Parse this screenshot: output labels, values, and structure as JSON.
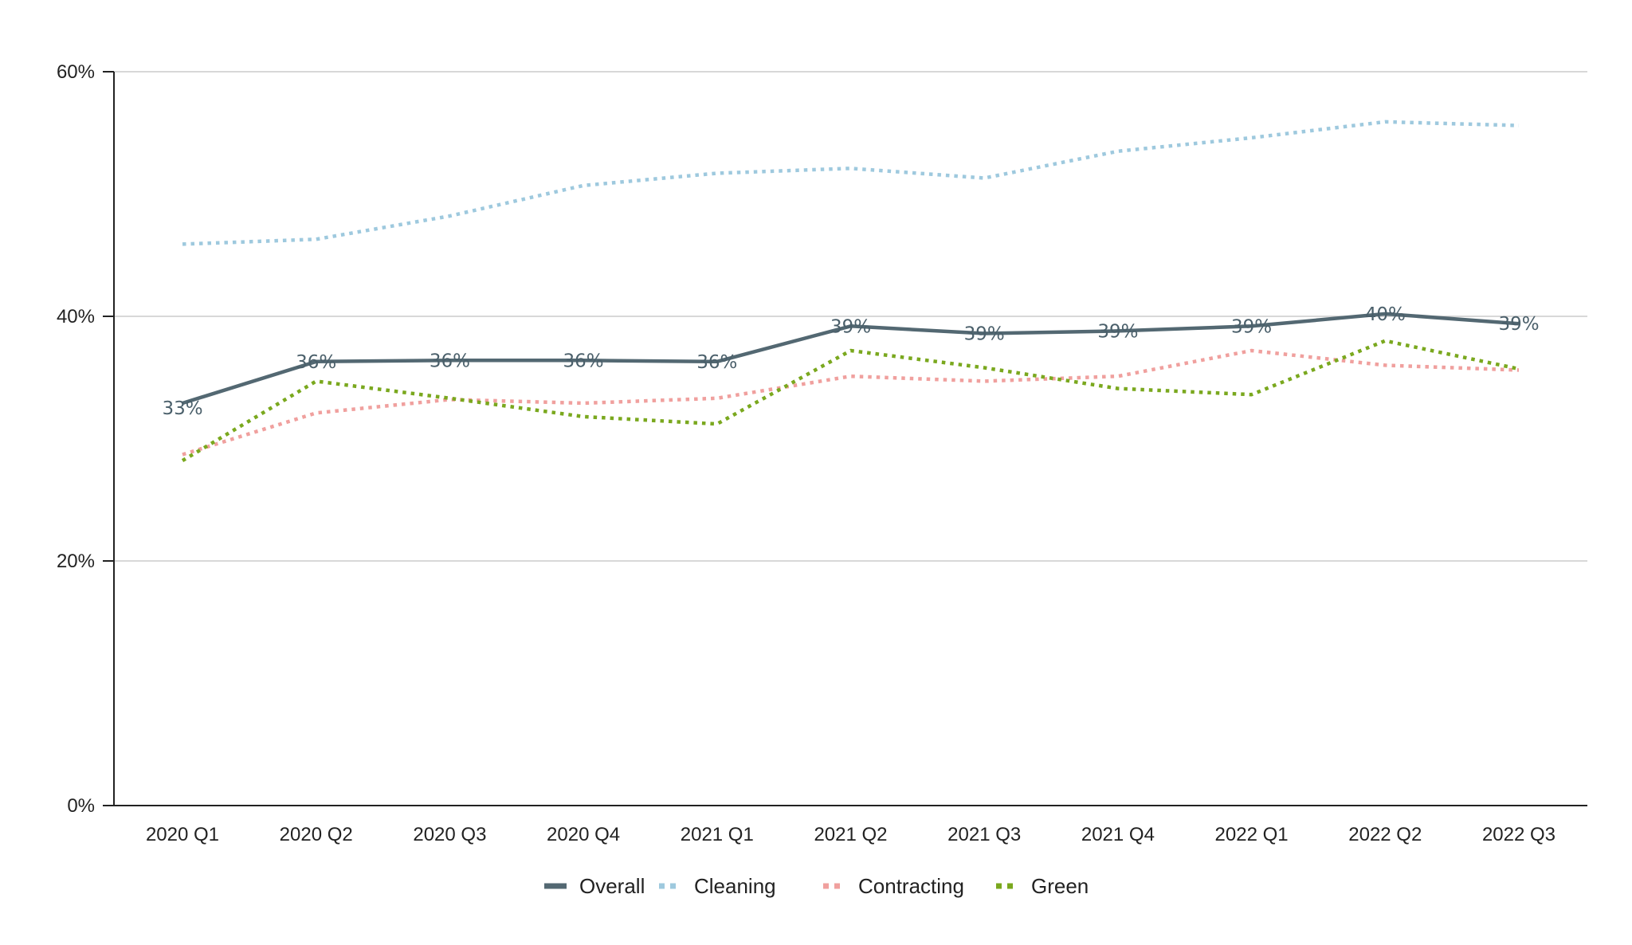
{
  "chart_data": {
    "type": "line",
    "title": "",
    "xlabel": "",
    "ylabel": "",
    "categories": [
      "2020 Q1",
      "2020 Q2",
      "2020 Q3",
      "2020 Q4",
      "2021 Q1",
      "2021 Q2",
      "2021 Q3",
      "2021 Q4",
      "2022 Q1",
      "2022 Q2",
      "2022 Q3"
    ],
    "ylim": [
      0,
      60
    ],
    "yticks": [
      0,
      20,
      40,
      60
    ],
    "ytick_labels": [
      "0%",
      "20%",
      "40%",
      "60%"
    ],
    "grid": true,
    "legend_position": "bottom-center",
    "series": [
      {
        "name": "Overall",
        "style": "solid",
        "color": "#536872",
        "values": [
          32.9,
          36.3,
          36.4,
          36.4,
          36.3,
          39.2,
          38.6,
          38.8,
          39.2,
          40.2,
          39.4
        ],
        "data_labels": [
          "33%",
          "36%",
          "36%",
          "36%",
          "36%",
          "39%",
          "39%",
          "39%",
          "39%",
          "40%",
          "39%"
        ]
      },
      {
        "name": "Cleaning",
        "style": "dotted",
        "color": "#9ec9de",
        "values": [
          45.9,
          46.3,
          48.2,
          50.7,
          51.7,
          52.1,
          51.3,
          53.5,
          54.6,
          55.9,
          55.6
        ]
      },
      {
        "name": "Contracting",
        "style": "dotted",
        "color": "#f0a09e",
        "values": [
          28.7,
          32.1,
          33.2,
          32.9,
          33.3,
          35.1,
          34.7,
          35.1,
          37.2,
          36.0,
          35.6
        ]
      },
      {
        "name": "Green",
        "style": "dotted",
        "color": "#7aa81e",
        "values": [
          28.2,
          34.7,
          33.3,
          31.8,
          31.2,
          37.2,
          35.8,
          34.1,
          33.6,
          38.0,
          35.7
        ]
      }
    ]
  }
}
